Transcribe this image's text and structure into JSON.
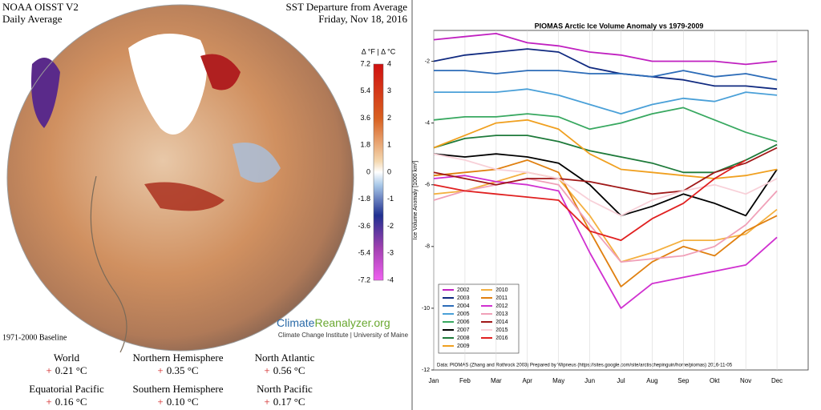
{
  "map_panel": {
    "title": "NOAA OISST V2",
    "subtitle": "Daily Average",
    "right_title": "SST Departure from Average",
    "date": "Friday, Nov 18, 2016",
    "colorbar_label": "Δ °F | Δ °C",
    "f_ticks": [
      7.2,
      5.4,
      3.6,
      1.8,
      0,
      -1.8,
      -3.6,
      -5.4,
      -7.2
    ],
    "c_ticks": [
      4,
      3,
      2,
      1,
      0,
      -1,
      -2,
      -3,
      -4
    ],
    "baseline": "1971-2000 Baseline",
    "brand_a": "Climate",
    "brand_b": "Reanalyzer.org",
    "credit": "Climate Change Institute | University of Maine",
    "stats": [
      {
        "name": "World",
        "sign": "+",
        "value": "0.21 °C"
      },
      {
        "name": "Northern Hemisphere",
        "sign": "+",
        "value": "0.35 °C"
      },
      {
        "name": "North Atlantic",
        "sign": "+",
        "value": "0.56 °C"
      },
      {
        "name": "Equatorial Pacific",
        "sign": "+",
        "value": "0.16 °C"
      },
      {
        "name": "Southern Hemisphere",
        "sign": "+",
        "value": "0.10 °C"
      },
      {
        "name": "North Pacific",
        "sign": "+",
        "value": "0.17 °C"
      }
    ]
  },
  "chart_data": {
    "type": "line",
    "title": "PIOMAS Arctic Ice Volume Anomaly vs 1979-2009",
    "y_label": "Ice Volume Anomaly [1000 km³]",
    "note": "Data: PIOMAS (Zhang and Rothrock 2003) Prepared by Wipneus (https://sites.google.com/site/arctischepinguin/home/piomas)   2016-11-05",
    "categories": [
      "Jan",
      "Feb",
      "Mar",
      "Apr",
      "May",
      "Jun",
      "Jul",
      "Aug",
      "Sep",
      "Okt",
      "Nov",
      "Dec"
    ],
    "ylim": [
      -12,
      -1
    ],
    "yticks": [
      -2,
      -4,
      -6,
      -8,
      -10,
      -12
    ],
    "grid": "x",
    "legend": "lower left",
    "series": [
      {
        "name": "2002",
        "color": "#c020c0",
        "values": [
          -1.3,
          -1.2,
          -1.1,
          -1.4,
          -1.5,
          -1.7,
          -1.8,
          -2.0,
          -2.0,
          -2.0,
          -2.1,
          -2.0
        ]
      },
      {
        "name": "2003",
        "color": "#102a80",
        "values": [
          -2.0,
          -1.8,
          -1.7,
          -1.6,
          -1.7,
          -2.2,
          -2.4,
          -2.5,
          -2.6,
          -2.8,
          -2.8,
          -2.9
        ]
      },
      {
        "name": "2004",
        "color": "#2c6cb8",
        "values": [
          -2.3,
          -2.3,
          -2.4,
          -2.3,
          -2.3,
          -2.4,
          -2.4,
          -2.5,
          -2.3,
          -2.5,
          -2.4,
          -2.6
        ]
      },
      {
        "name": "2005",
        "color": "#4aa0d8",
        "values": [
          -3.0,
          -3.0,
          -3.0,
          -2.9,
          -3.1,
          -3.4,
          -3.7,
          -3.4,
          -3.2,
          -3.3,
          -3.0,
          -3.1
        ]
      },
      {
        "name": "2006",
        "color": "#38a860",
        "values": [
          -3.9,
          -3.8,
          -3.8,
          -3.7,
          -3.8,
          -4.2,
          -4.0,
          -3.7,
          -3.5,
          -3.9,
          -4.3,
          -4.6
        ]
      },
      {
        "name": "2007",
        "color": "#000000",
        "values": [
          -5.0,
          -5.1,
          -5.0,
          -5.1,
          -5.3,
          -6.0,
          -7.0,
          -6.7,
          -6.3,
          -6.6,
          -7.0,
          -5.5
        ]
      },
      {
        "name": "2008",
        "color": "#1e7a3a",
        "values": [
          -4.8,
          -4.5,
          -4.4,
          -4.4,
          -4.6,
          -4.9,
          -5.1,
          -5.3,
          -5.6,
          -5.6,
          -5.2,
          -4.7
        ]
      },
      {
        "name": "2009",
        "color": "#f0a020",
        "values": [
          -4.8,
          -4.4,
          -4.0,
          -3.9,
          -4.2,
          -5.0,
          -5.5,
          -5.6,
          -5.7,
          -5.8,
          -5.7,
          -5.5
        ]
      },
      {
        "name": "2010",
        "color": "#f4b040",
        "values": [
          -6.3,
          -6.2,
          -5.9,
          -5.6,
          -5.8,
          -7.0,
          -8.5,
          -8.2,
          -7.8,
          -7.8,
          -7.6,
          -6.8
        ]
      },
      {
        "name": "2011",
        "color": "#e08010",
        "values": [
          -5.7,
          -5.6,
          -5.5,
          -5.2,
          -5.6,
          -7.5,
          -9.3,
          -8.5,
          -8.0,
          -8.3,
          -7.5,
          -7.0
        ]
      },
      {
        "name": "2012",
        "color": "#d030d0",
        "values": [
          -5.8,
          -5.7,
          -5.9,
          -6.0,
          -6.2,
          -8.2,
          -10.0,
          -9.2,
          -9.0,
          -8.8,
          -8.6,
          -7.7
        ]
      },
      {
        "name": "2013",
        "color": "#f0a0b8",
        "values": [
          -6.5,
          -6.2,
          -6.0,
          -5.8,
          -6.0,
          -7.3,
          -8.5,
          -8.4,
          -8.3,
          -8.0,
          -7.3,
          -6.2
        ]
      },
      {
        "name": "2014",
        "color": "#a01818",
        "values": [
          -5.6,
          -5.8,
          -6.0,
          -5.8,
          -5.8,
          -5.9,
          -6.1,
          -6.3,
          -6.2,
          -5.6,
          -5.3,
          -4.8
        ]
      },
      {
        "name": "2015",
        "color": "#f8d0d8",
        "values": [
          -5.0,
          -5.2,
          -5.5,
          -5.6,
          -5.8,
          -6.5,
          -7.0,
          -6.5,
          -6.2,
          -6.0,
          -6.3,
          -5.8
        ]
      },
      {
        "name": "2016",
        "color": "#e02020",
        "values": [
          -6.0,
          -6.2,
          -6.3,
          -6.4,
          -6.5,
          -7.5,
          -7.8,
          -7.1,
          -6.6,
          -5.8,
          -5.2,
          null
        ]
      }
    ]
  }
}
